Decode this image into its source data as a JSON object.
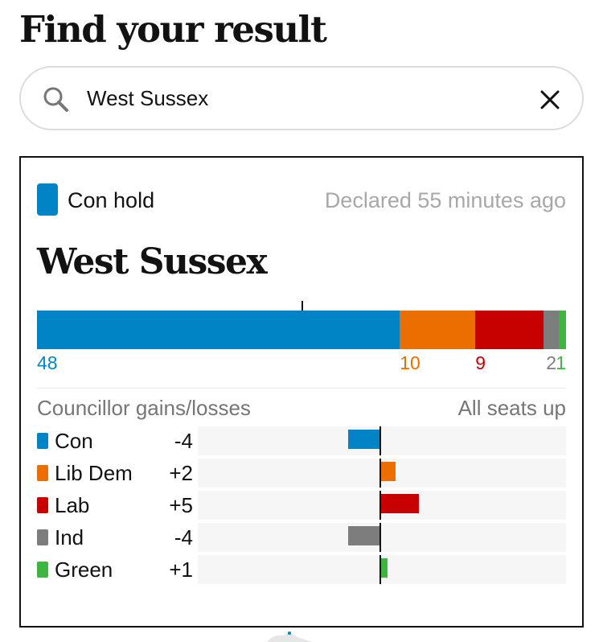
{
  "page": {
    "heading": "Find your result"
  },
  "search": {
    "value": "West Sussex",
    "placeholder": ""
  },
  "result": {
    "status": "Con hold",
    "status_color": "#0084c6",
    "declared": "Declared 55 minutes ago",
    "council": "West Sussex",
    "seats": [
      {
        "party": "Con",
        "seats": 48,
        "label": "48",
        "color": "#0084c6"
      },
      {
        "party": "Lib Dem",
        "seats": 10,
        "label": "10",
        "color": "#ed6e00"
      },
      {
        "party": "Lab",
        "seats": 9,
        "label": "9",
        "color": "#c70000"
      },
      {
        "party": "Ind",
        "seats": 2,
        "label": "2",
        "color": "#7d7d7d"
      },
      {
        "party": "Green",
        "seats": 1,
        "label": "1",
        "color": "#3db540"
      }
    ],
    "gains_title": "Councillor gains/losses",
    "seats_up": "All seats up",
    "changes": [
      {
        "party": "Con",
        "change": -4,
        "label": "-4",
        "color": "#0084c6"
      },
      {
        "party": "Lib Dem",
        "change": 2,
        "label": "+2",
        "color": "#ed6e00"
      },
      {
        "party": "Lab",
        "change": 5,
        "label": "+5",
        "color": "#c70000"
      },
      {
        "party": "Ind",
        "change": -4,
        "label": "-4",
        "color": "#7d7d7d"
      },
      {
        "party": "Green",
        "change": 1,
        "label": "+1",
        "color": "#3db540"
      }
    ]
  },
  "icons": {
    "search": "search-icon",
    "clear": "close-icon"
  }
}
